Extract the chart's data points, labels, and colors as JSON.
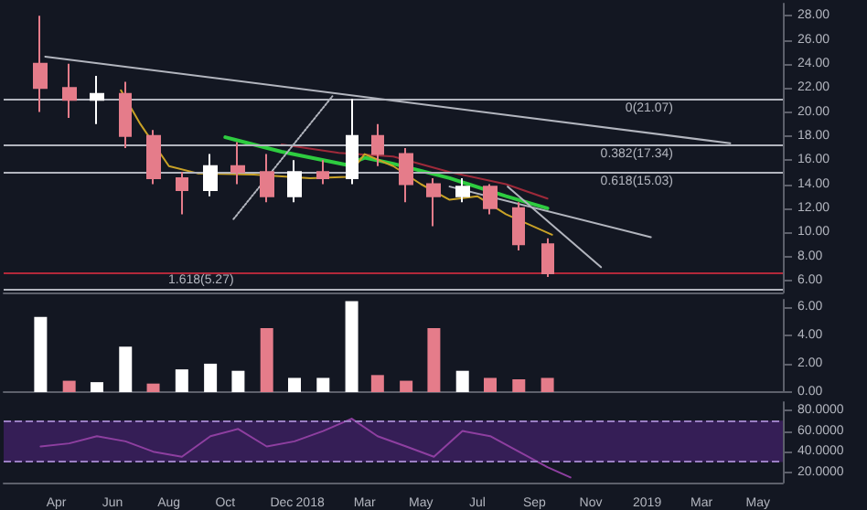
{
  "chart_data": [
    {
      "type": "candlestick",
      "x": [
        "2017-03-15",
        "2017-04-15",
        "2017-05-15",
        "2017-06-15",
        "2017-07-15",
        "2017-08-15",
        "2017-09-15",
        "2017-10-15",
        "2017-11-15",
        "2017-12-15",
        "2018-01-15",
        "2018-02-15",
        "2018-03-15",
        "2018-04-15",
        "2018-05-15",
        "2018-06-15",
        "2018-07-15",
        "2018-08-15",
        "2018-09-15"
      ],
      "ohlc": [
        [
          24,
          28,
          20,
          22
        ],
        [
          22,
          24,
          19.5,
          21
        ],
        [
          21,
          23,
          19,
          21.5
        ],
        [
          21.5,
          22.5,
          17,
          18
        ],
        [
          18,
          18.5,
          14,
          14.5
        ],
        [
          14.5,
          15,
          11.5,
          13.5
        ],
        [
          13.5,
          16.5,
          13,
          15.5
        ],
        [
          15.5,
          17.5,
          14,
          15
        ],
        [
          15,
          16.5,
          12.5,
          13
        ],
        [
          13,
          16,
          12.5,
          15
        ],
        [
          15,
          16,
          14,
          14.5
        ],
        [
          14.5,
          21.1,
          14,
          18
        ],
        [
          18,
          19,
          15.5,
          16.5
        ],
        [
          16.5,
          17,
          12.5,
          14
        ],
        [
          14,
          14.5,
          10.5,
          13
        ],
        [
          13,
          14.5,
          12.5,
          13.8
        ],
        [
          13.8,
          14,
          11.5,
          12
        ],
        [
          12,
          12.5,
          8.5,
          9
        ],
        [
          9,
          9.5,
          6.3,
          6.6
        ]
      ],
      "colors": [
        "#e57c8a",
        "#e57c8a",
        "#ffffff",
        "#e57c8a",
        "#e57c8a",
        "#e57c8a",
        "#ffffff",
        "#e57c8a",
        "#e57c8a",
        "#ffffff",
        "#e57c8a",
        "#ffffff",
        "#e57c8a",
        "#e57c8a",
        "#e57c8a",
        "#ffffff",
        "#e57c8a",
        "#e57c8a",
        "#e57c8a"
      ],
      "series": [
        {
          "type": "line",
          "color": "#2ecc40",
          "x": [
            "2017-10-01",
            "2017-12-01",
            "2018-02-10",
            "2018-03-01",
            "2018-04-01",
            "2018-06-01",
            "2018-08-01",
            "2018-09-15"
          ],
          "values": [
            17.9,
            16.7,
            15.6,
            16.2,
            15.7,
            14.5,
            13,
            12
          ]
        },
        {
          "type": "line",
          "color": "#9e2a3a",
          "x": [
            "2017-12-01",
            "2018-02-01",
            "2018-04-01",
            "2018-06-01",
            "2018-08-01",
            "2018-09-15"
          ],
          "values": [
            17.3,
            16.6,
            16.3,
            15,
            14,
            12.8
          ]
        },
        {
          "type": "line",
          "color": "#c9a227",
          "x": [
            "2017-06-10",
            "2017-07-01",
            "2017-08-01",
            "2017-09-01",
            "2017-11-01",
            "2018-01-01",
            "2018-02-10",
            "2018-03-01",
            "2018-04-01",
            "2018-05-01",
            "2018-06-01",
            "2018-07-01",
            "2018-08-01",
            "2018-09-20"
          ],
          "values": [
            21.8,
            19,
            15.5,
            14.9,
            14.8,
            14.5,
            14.6,
            16.5,
            15.5,
            14,
            12.7,
            13,
            11.5,
            9.8
          ]
        },
        {
          "type": "line",
          "color": "#b2b5be",
          "x": [
            "2017-03-20",
            "2019-04-01"
          ],
          "values": [
            24.6,
            17.4
          ]
        },
        {
          "type": "line",
          "color": "#b2b5be",
          "x": [
            "2018-06-01",
            "2019-01-05"
          ],
          "values": [
            13.8,
            9.6
          ]
        },
        {
          "type": "line",
          "color": "#b2b5be",
          "x": [
            "2018-08-03",
            "2018-11-12"
          ],
          "values": [
            13.8,
            7.1
          ]
        },
        {
          "type": "line",
          "color": "#b2b5be",
          "line_style": "dotted",
          "x": [
            "2017-10-10",
            "2018-01-25"
          ],
          "values": [
            11.1,
            21.3
          ]
        }
      ],
      "ref_lines": [
        {
          "axis": "y",
          "value": 21.07,
          "label": "0(21.07)",
          "color": "#b2b5be"
        },
        {
          "axis": "y",
          "value": 17.34,
          "label": "0.382(17.34)",
          "color": "#b2b5be"
        },
        {
          "axis": "y",
          "value": 15.03,
          "label": "0.618(15.03)",
          "color": "#b2b5be"
        },
        {
          "axis": "y",
          "value": 5.27,
          "label": "1.618(5.27)",
          "color": "#b2b5be"
        },
        {
          "axis": "y",
          "value": 6.6,
          "color": "#b2283a"
        }
      ],
      "xlim": [
        "2017-02-03",
        "2019-05-28"
      ],
      "ylim": [
        5,
        29
      ],
      "yticks": [
        {
          "value": 6,
          "label": "6.00"
        },
        {
          "value": 8,
          "label": "8.00"
        },
        {
          "value": 10,
          "label": "10.00"
        },
        {
          "value": 12,
          "label": "12.00"
        },
        {
          "value": 14,
          "label": "14.00"
        },
        {
          "value": 16,
          "label": "16.00"
        },
        {
          "value": 18,
          "label": "18.00"
        },
        {
          "value": 20,
          "label": "20.00"
        },
        {
          "value": 22,
          "label": "22.00"
        },
        {
          "value": 24,
          "label": "24.00"
        },
        {
          "value": 26,
          "label": "26.00"
        },
        {
          "value": 28,
          "label": "28.00"
        }
      ],
      "tick_labels": "y"
    },
    {
      "type": "bar",
      "x": [
        "2017-03-15",
        "2017-04-15",
        "2017-05-15",
        "2017-06-15",
        "2017-07-15",
        "2017-08-15",
        "2017-09-15",
        "2017-10-15",
        "2017-11-15",
        "2017-12-15",
        "2018-01-15",
        "2018-02-15",
        "2018-03-15",
        "2018-04-15",
        "2018-05-15",
        "2018-06-15",
        "2018-07-15",
        "2018-08-15",
        "2018-09-15"
      ],
      "values": [
        5.3,
        0.8,
        0.7,
        3.2,
        0.6,
        1.6,
        2,
        1.5,
        4.5,
        1,
        1,
        6.4,
        1.2,
        0.8,
        4.5,
        1.5,
        1,
        0.9,
        1
      ],
      "colors": [
        "#ffffff",
        "#e57c8a",
        "#ffffff",
        "#ffffff",
        "#e57c8a",
        "#ffffff",
        "#ffffff",
        "#ffffff",
        "#e57c8a",
        "#ffffff",
        "#ffffff",
        "#ffffff",
        "#e57c8a",
        "#e57c8a",
        "#e57c8a",
        "#ffffff",
        "#e57c8a",
        "#e57c8a",
        "#e57c8a"
      ],
      "xlim": [
        "2017-02-03",
        "2019-05-28"
      ],
      "ylim": [
        0,
        6.5
      ],
      "yticks": [
        {
          "value": 0,
          "label": "0.00"
        },
        {
          "value": 2,
          "label": "2.00"
        },
        {
          "value": 4,
          "label": "4.00"
        },
        {
          "value": 6,
          "label": "6.00"
        }
      ],
      "tick_labels": "y"
    },
    {
      "type": "line",
      "color": "#8e3fa0",
      "x": [
        "2017-03-15",
        "2017-04-15",
        "2017-05-15",
        "2017-06-15",
        "2017-07-15",
        "2017-08-15",
        "2017-09-15",
        "2017-10-15",
        "2017-11-15",
        "2017-12-15",
        "2018-01-15",
        "2018-02-15",
        "2018-03-15",
        "2018-04-15",
        "2018-05-15",
        "2018-06-15",
        "2018-07-15",
        "2018-08-15",
        "2018-09-15",
        "2018-10-10"
      ],
      "values": [
        45,
        48,
        55,
        50,
        40,
        35,
        55,
        62,
        45,
        50,
        60,
        72,
        55,
        45,
        35,
        60,
        55,
        40,
        25,
        15
      ],
      "bands": [
        {
          "axis": "y",
          "from": 30,
          "to": 70,
          "color": "#3a1f5c"
        }
      ],
      "ref_lines": [
        {
          "axis": "y",
          "value": 70,
          "color": "#9b7fc4",
          "line_style": "dashed"
        },
        {
          "axis": "y",
          "value": 30,
          "color": "#9b7fc4",
          "line_style": "dashed"
        }
      ],
      "xlim": [
        "2017-02-03",
        "2019-05-28"
      ],
      "ylim": [
        10,
        88
      ],
      "yticks": [
        {
          "value": 20,
          "label": "20.0000"
        },
        {
          "value": 40,
          "label": "40.0000"
        },
        {
          "value": 60,
          "label": "60.0000"
        },
        {
          "value": 80,
          "label": "80.0000"
        }
      ],
      "xticks": [
        {
          "value": "2017-04-01",
          "label": "Apr"
        },
        {
          "value": "2017-06-01",
          "label": "Jun"
        },
        {
          "value": "2017-08-01",
          "label": "Aug"
        },
        {
          "value": "2017-10-01",
          "label": "Oct"
        },
        {
          "value": "2017-12-01",
          "label": "Dec"
        },
        {
          "value": "2018-01-01",
          "label": "2018"
        },
        {
          "value": "2018-03-01",
          "label": "Mar"
        },
        {
          "value": "2018-05-01",
          "label": "May"
        },
        {
          "value": "2018-07-01",
          "label": "Jul"
        },
        {
          "value": "2018-09-01",
          "label": "Sep"
        },
        {
          "value": "2018-11-01",
          "label": "Nov"
        },
        {
          "value": "2019-01-01",
          "label": "2019"
        },
        {
          "value": "2019-03-01",
          "label": "Mar"
        },
        {
          "value": "2019-05-01",
          "label": "May"
        }
      ]
    }
  ]
}
